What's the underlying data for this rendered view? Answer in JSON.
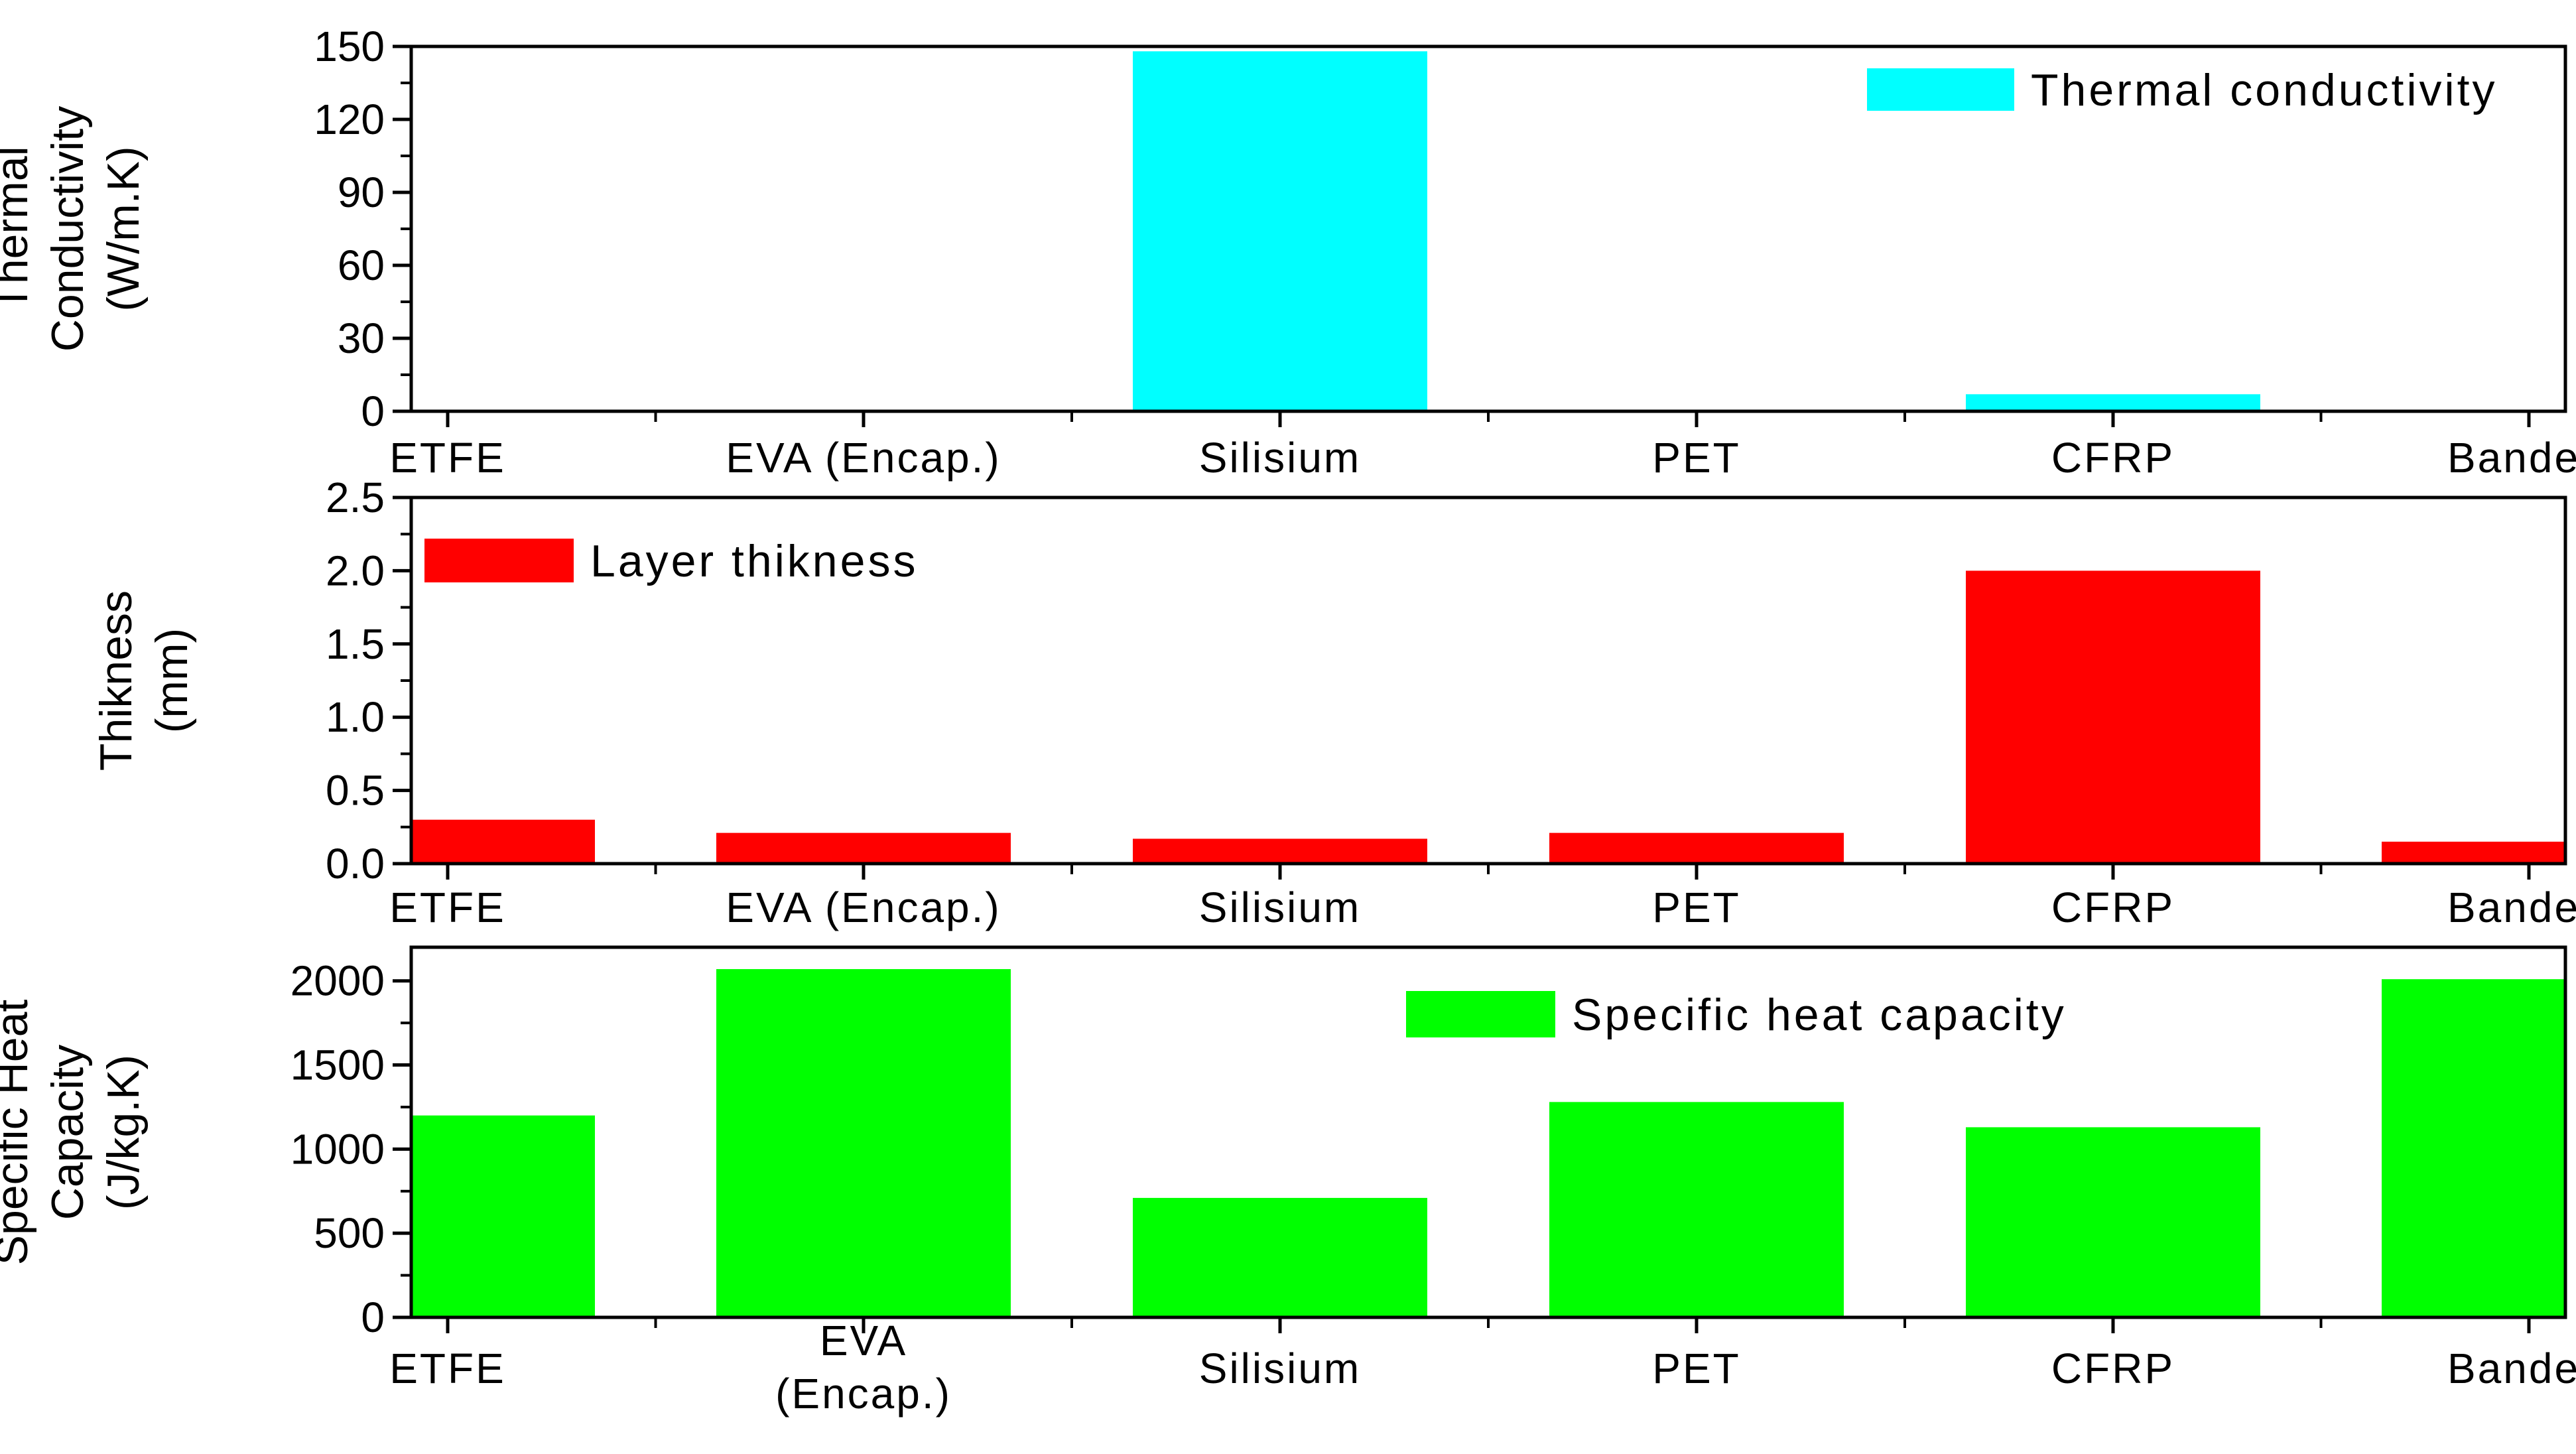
{
  "chart_data": [
    {
      "type": "bar",
      "ylabel_lines": [
        "Thermal",
        "Conductivity",
        "(W/m.K)"
      ],
      "categories": [
        "ETFE",
        "EVA (Encap.)",
        "Silisium",
        "PET",
        "CFRP",
        "Bande"
      ],
      "series": [
        {
          "name": "Thermal conductivity",
          "values": [
            0.24,
            0.35,
            148,
            0.15,
            7,
            0.2
          ],
          "color": "#00ffff"
        }
      ],
      "ylim": [
        0,
        150
      ],
      "yticks": [
        0,
        30,
        60,
        90,
        120,
        150
      ],
      "yticks_labels": [
        "0",
        "30",
        "60",
        "90",
        "120",
        "150"
      ],
      "legend": "top-right"
    },
    {
      "type": "bar",
      "ylabel_lines": [
        "Thikness",
        "(mm)"
      ],
      "categories": [
        "ETFE",
        "EVA (Encap.)",
        "Silisium",
        "PET",
        "CFRP",
        "Bande"
      ],
      "series": [
        {
          "name": "Layer thikness",
          "values": [
            0.3,
            0.21,
            0.17,
            0.21,
            2.0,
            0.15
          ],
          "color": "#ff0000"
        }
      ],
      "ylim": [
        0,
        2.5
      ],
      "yticks": [
        0,
        0.5,
        1.0,
        1.5,
        2.0,
        2.5
      ],
      "yticks_labels": [
        "0.0",
        "0.5",
        "1.0",
        "1.5",
        "2.0",
        "2.5"
      ],
      "legend": "top-left"
    },
    {
      "type": "bar",
      "ylabel_lines": [
        "Specific Heat",
        "Capacity",
        "(J/kg.K)"
      ],
      "categories": [
        "ETFE",
        "EVA (Encap.)",
        "Silisium",
        "PET",
        "CFRP",
        "Bande"
      ],
      "category_label_lines": [
        [
          "ETFE"
        ],
        [
          "EVA",
          "(Encap.)"
        ],
        [
          "Silisium"
        ],
        [
          "PET"
        ],
        [
          "CFRP"
        ],
        [
          "Bande"
        ]
      ],
      "series": [
        {
          "name": "Specific heat capacity",
          "values": [
            1200,
            2070,
            710,
            1280,
            1130,
            2010
          ],
          "color": "#00ff00"
        }
      ],
      "ylim": [
        0,
        2200
      ],
      "yticks": [
        0,
        500,
        1000,
        1500,
        2000
      ],
      "yticks_labels": [
        "0",
        "500",
        "1000",
        "1500",
        "2000"
      ],
      "legend": "top-center"
    }
  ]
}
